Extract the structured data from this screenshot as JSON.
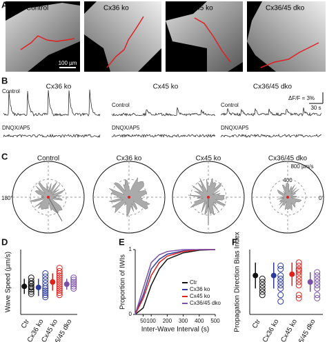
{
  "panels": {
    "A": {
      "label": "A",
      "titles": [
        "Control",
        "Cx36 ko",
        "Cx45 ko",
        "Cx36/45 dko"
      ],
      "scale": "100 µm"
    },
    "B": {
      "label": "B",
      "titles": [
        "Cx36 ko",
        "Cx45 ko",
        "Cx36/45 dko"
      ],
      "control": "Control",
      "drug": "DNQX/AP5",
      "scale_y": "ΔF/F = 3%",
      "scale_x": "30 s"
    },
    "C": {
      "label": "C",
      "titles": [
        "Control",
        "Cx36 ko",
        "Cx45 ko",
        "Cx36/45 dko"
      ],
      "left": "180°",
      "right": "0°",
      "r_outer": "800 µm/s",
      "r_inner": "400"
    }
  },
  "chart_data": [
    {
      "type": "strip",
      "label": "D",
      "ylabel": "Wave Speed (µm/s)",
      "categories": [
        "Ctr",
        "Cx36 ko",
        "Cx45 ko",
        "Cx36/45 dko"
      ],
      "colors": [
        "#111111",
        "#2b3a9b",
        "#e0201b",
        "#7b4fa8"
      ],
      "points": [
        [
          170,
          155,
          145,
          140,
          130,
          125,
          115,
          105,
          95
        ],
        [
          190,
          175,
          160,
          145,
          130,
          120,
          110,
          100,
          90,
          80
        ],
        [
          215,
          200,
          190,
          180,
          170,
          160,
          150,
          140,
          130,
          120,
          110,
          100,
          90
        ],
        [
          170,
          160,
          150,
          140,
          130,
          120
        ]
      ],
      "means": [
        130,
        125,
        150,
        140
      ],
      "errors": [
        35,
        40,
        40,
        25
      ],
      "ylim": [
        0,
        300
      ]
    },
    {
      "type": "line",
      "label": "E",
      "ylabel": "Proportion of IWIs",
      "xlabel": "Inter-Wave Interval (s)",
      "x": [
        0,
        50,
        100,
        150,
        200,
        300,
        400,
        500
      ],
      "series": [
        {
          "name": "Ctr",
          "color": "#111111",
          "values": [
            0,
            0.1,
            0.45,
            0.7,
            0.85,
            0.95,
            0.99,
            1
          ]
        },
        {
          "name": "Cx36 ko",
          "color": "#2b3a9b",
          "values": [
            0,
            0.3,
            0.7,
            0.85,
            0.93,
            0.98,
            1,
            1
          ]
        },
        {
          "name": "Cx45 ko",
          "color": "#e0201b",
          "values": [
            0,
            0.25,
            0.6,
            0.8,
            0.9,
            0.97,
            1,
            1
          ]
        },
        {
          "name": "Cx36/45 dko",
          "color": "#7b4fa8",
          "values": [
            0,
            0.4,
            0.8,
            0.92,
            0.97,
            1,
            1,
            1
          ]
        }
      ],
      "xlim": [
        0,
        500
      ],
      "xticks": [
        50,
        100,
        200,
        300,
        400,
        500
      ],
      "ylim": [
        0,
        1
      ],
      "yticks": [
        0,
        1
      ],
      "legend": "lower right"
    },
    {
      "type": "strip",
      "label": "F",
      "ylabel": "Propagation Direction Bias Index",
      "categories": [
        "Ctr",
        "Cx36 ko",
        "Cx45 ko",
        "Cx36/45 dko"
      ],
      "colors": [
        "#111111",
        "#2b3a9b",
        "#e0201b",
        "#7b4fa8"
      ],
      "points": [
        [
          0.55,
          0.5,
          0.45,
          0.4,
          0.35,
          0.3
        ],
        [
          0.75,
          0.7,
          0.6,
          0.55,
          0.5,
          0.45,
          0.4,
          0.3,
          0.2
        ],
        [
          0.8,
          0.75,
          0.7,
          0.68,
          0.65,
          0.6,
          0.55,
          0.5,
          0.45,
          0.3,
          0.25
        ],
        [
          0.65,
          0.6,
          0.55,
          0.5,
          0.45,
          0.4,
          0.3,
          0.25
        ]
      ],
      "means": [
        0.6,
        0.6,
        0.62,
        0.5
      ],
      "errors": [
        0.2,
        0.2,
        0.18,
        0.15
      ],
      "ylim": [
        0,
        1
      ]
    }
  ]
}
